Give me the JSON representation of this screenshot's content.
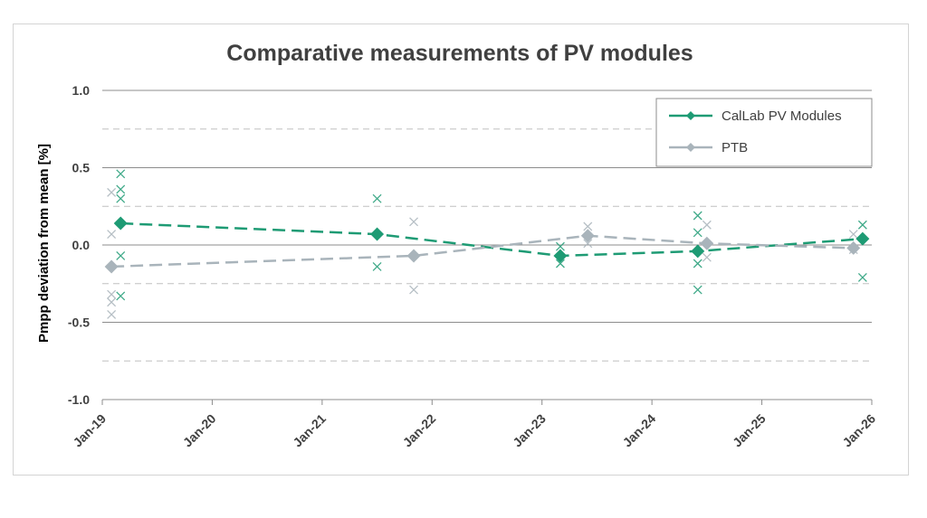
{
  "chart_data": {
    "type": "line",
    "title": "Comparative measurements of PV modules",
    "xlabel": "",
    "ylabel": "Pmpp deviation from mean [%]",
    "xlim": [
      "2019-01",
      "2026-01"
    ],
    "ylim": [
      -1.0,
      1.0
    ],
    "x_ticks": [
      "Jan-19",
      "Jan-20",
      "Jan-21",
      "Jan-22",
      "Jan-23",
      "Jan-24",
      "Jan-25",
      "Jan-26"
    ],
    "y_ticks": [
      "1.0",
      "0.5",
      "0.0",
      "-0.5",
      "-1.0"
    ],
    "y_tick_values": [
      1.0,
      0.5,
      0.0,
      -0.5,
      -1.0
    ],
    "grid": "horizontal: solid major lines, dashed minor lines",
    "legend_position": "top-right",
    "series": [
      {
        "name": "CalLab PV Modules",
        "color": "#1e9b74",
        "marker": "diamond",
        "line": "dashed",
        "x": [
          "2019-03",
          "2021-07",
          "2023-03",
          "2024-06",
          "2025-12"
        ],
        "y": [
          0.14,
          0.07,
          -0.07,
          -0.04,
          0.04
        ]
      },
      {
        "name": "PTB",
        "color": "#a9b4bb",
        "marker": "diamond",
        "line": "dashed",
        "x": [
          "2019-02",
          "2021-11",
          "2023-06",
          "2024-07",
          "2025-11"
        ],
        "y": [
          -0.14,
          -0.07,
          0.06,
          0.01,
          -0.02
        ]
      }
    ],
    "individual_measurements": [
      {
        "series": "CalLab PV Modules",
        "x": "2019-03",
        "y": [
          0.46,
          0.36,
          0.3,
          -0.07,
          -0.33
        ]
      },
      {
        "series": "CalLab PV Modules",
        "x": "2021-07",
        "y": [
          0.3,
          -0.14
        ]
      },
      {
        "series": "CalLab PV Modules",
        "x": "2023-03",
        "y": [
          -0.01,
          -0.12
        ]
      },
      {
        "series": "CalLab PV Modules",
        "x": "2024-06",
        "y": [
          0.19,
          0.08,
          -0.12,
          -0.29
        ]
      },
      {
        "series": "CalLab PV Modules",
        "x": "2025-12",
        "y": [
          0.13,
          -0.21
        ]
      },
      {
        "series": "PTB",
        "x": "2019-02",
        "y": [
          0.34,
          0.07,
          -0.32,
          -0.37,
          -0.45
        ]
      },
      {
        "series": "PTB",
        "x": "2021-11",
        "y": [
          0.15,
          -0.29
        ]
      },
      {
        "series": "PTB",
        "x": "2023-06",
        "y": [
          0.12,
          0.01
        ]
      },
      {
        "series": "PTB",
        "x": "2024-07",
        "y": [
          0.13,
          -0.08
        ]
      },
      {
        "series": "PTB",
        "x": "2025-11",
        "y": [
          0.07,
          -0.03
        ]
      }
    ]
  }
}
